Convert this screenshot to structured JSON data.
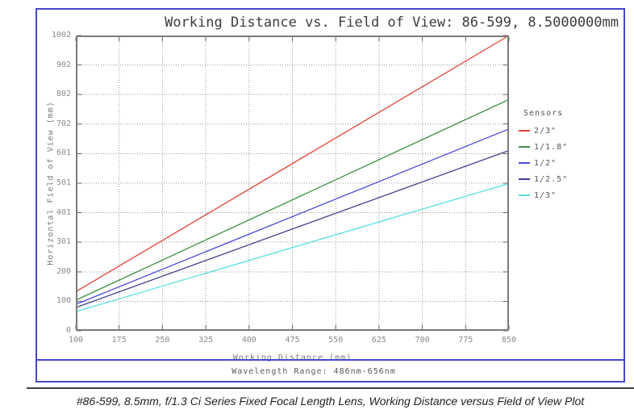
{
  "title": "Working Distance vs. Field of View: 86-599, 8.5000000mm",
  "caption": "#86-599, 8.5mm, f/1.3 Ci Series Fixed Focal Length Lens, Working Distance versus Field of View Plot",
  "footer": {
    "wavelength_label": "Wavelength Range: 486nm-656nm"
  },
  "colors": {
    "box_border": "#4747cd",
    "plot_frame": "#7a7a7a",
    "grid": "#999999",
    "tick_text": "#8a8a8a"
  },
  "chart_data": {
    "type": "line",
    "title": "Working Distance vs. Field of View: 86-599, 8.5000000mm",
    "xlabel": "Working Distance (mm)",
    "ylabel": "Horizontal Field of View (mm)",
    "xlim": [
      100,
      850
    ],
    "ylim": [
      0,
      1002
    ],
    "xticks": [
      100,
      175,
      250,
      325,
      400,
      475,
      550,
      625,
      700,
      775,
      850
    ],
    "yticks": [
      0,
      100,
      200,
      301,
      401,
      501,
      601,
      702,
      802,
      902,
      1002
    ],
    "grid": true,
    "legend_title": "Sensors",
    "legend_position": "right",
    "x": [
      100,
      850
    ],
    "series": [
      {
        "name": "2/3\"",
        "color": "#de4434",
        "values": [
          133,
          1002
        ]
      },
      {
        "name": "1/1.8\"",
        "color": "#3f9145",
        "values": [
          104,
          785
        ]
      },
      {
        "name": "1/2\"",
        "color": "#4b49dd",
        "values": [
          90,
          685
        ]
      },
      {
        "name": "1/2.5\"",
        "color": "#41418c",
        "values": [
          79,
          612
        ]
      },
      {
        "name": "1/3\"",
        "color": "#58dfe0",
        "values": [
          65,
          500
        ]
      }
    ]
  }
}
